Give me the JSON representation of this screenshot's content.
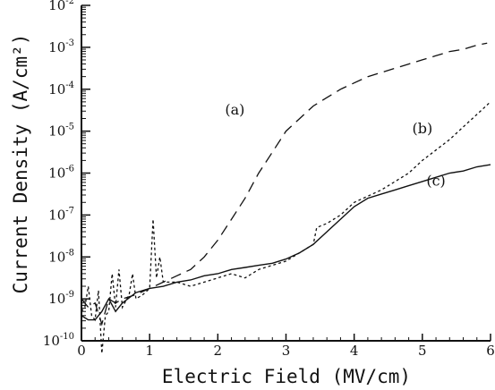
{
  "chart_data": {
    "type": "line",
    "title": "",
    "xlabel": "Electric Field (MV/cm)",
    "ylabel": "Current Density (A/cm²)",
    "xlim": [
      0,
      6
    ],
    "ylim_exp": [
      -10,
      -2
    ],
    "y_scale": "log",
    "x_ticks": [
      "0",
      "1",
      "2",
      "3",
      "4",
      "5",
      "6"
    ],
    "y_tick_base": "10",
    "y_tick_exponents": [
      "-10",
      "-9",
      "-8",
      "-7",
      "-6",
      "-5",
      "-4",
      "-3",
      "-2"
    ],
    "grid": false,
    "series": [
      {
        "name": "(a)",
        "style": "dashed",
        "x": [
          0,
          0.1,
          0.2,
          0.3,
          0.4,
          0.5,
          0.6,
          0.8,
          1.0,
          1.2,
          1.4,
          1.6,
          1.8,
          2.0,
          2.2,
          2.4,
          2.6,
          2.8,
          3.0,
          3.2,
          3.4,
          3.6,
          3.8,
          4.0,
          4.2,
          4.4,
          4.6,
          4.8,
          5.0,
          5.2,
          5.4,
          5.6,
          5.8,
          5.95
        ],
        "y_exp": [
          -9.0,
          -9.2,
          -9.1,
          -9.6,
          -9.0,
          -9.1,
          -9.0,
          -8.9,
          -8.75,
          -8.6,
          -8.45,
          -8.3,
          -8.0,
          -7.6,
          -7.1,
          -6.6,
          -6.0,
          -5.5,
          -5.0,
          -4.7,
          -4.4,
          -4.2,
          -4.0,
          -3.85,
          -3.7,
          -3.6,
          -3.5,
          -3.4,
          -3.3,
          -3.2,
          -3.1,
          -3.05,
          -2.95,
          -2.9
        ]
      },
      {
        "name": "(b)",
        "style": "dotted",
        "x": [
          0,
          0.05,
          0.1,
          0.15,
          0.2,
          0.25,
          0.3,
          0.35,
          0.4,
          0.45,
          0.5,
          0.55,
          0.6,
          0.7,
          0.75,
          0.8,
          0.9,
          1.0,
          1.05,
          1.1,
          1.15,
          1.2,
          1.4,
          1.6,
          1.8,
          2.0,
          2.2,
          2.4,
          2.6,
          2.8,
          3.0,
          3.2,
          3.4,
          3.45,
          3.6,
          3.8,
          4.0,
          4.2,
          4.4,
          4.6,
          4.8,
          5.0,
          5.2,
          5.4,
          5.6,
          5.8,
          6.0
        ],
        "y_exp": [
          -9.3,
          -9.2,
          -8.7,
          -9.4,
          -9.5,
          -8.8,
          -10.3,
          -9.4,
          -9.3,
          -8.4,
          -9.2,
          -8.3,
          -9.2,
          -8.9,
          -8.4,
          -9.0,
          -8.9,
          -8.75,
          -7.1,
          -8.5,
          -8.0,
          -8.6,
          -8.6,
          -8.7,
          -8.6,
          -8.5,
          -8.4,
          -8.5,
          -8.3,
          -8.2,
          -8.1,
          -7.9,
          -7.7,
          -7.3,
          -7.2,
          -7.0,
          -6.7,
          -6.55,
          -6.4,
          -6.2,
          -6.0,
          -5.7,
          -5.45,
          -5.2,
          -4.9,
          -4.6,
          -4.3
        ]
      },
      {
        "name": "(c)",
        "style": "solid",
        "x": [
          0,
          0.1,
          0.2,
          0.3,
          0.4,
          0.5,
          0.6,
          0.8,
          1.0,
          1.2,
          1.4,
          1.6,
          1.8,
          2.0,
          2.2,
          2.4,
          2.6,
          2.8,
          3.0,
          3.2,
          3.4,
          3.6,
          3.8,
          4.0,
          4.2,
          4.4,
          4.6,
          4.8,
          5.0,
          5.2,
          5.4,
          5.6,
          5.8,
          6.0
        ],
        "y_exp": [
          -9.4,
          -9.5,
          -9.5,
          -9.3,
          -9.0,
          -9.3,
          -9.1,
          -8.85,
          -8.75,
          -8.7,
          -8.6,
          -8.55,
          -8.45,
          -8.4,
          -8.3,
          -8.25,
          -8.2,
          -8.15,
          -8.05,
          -7.9,
          -7.7,
          -7.4,
          -7.1,
          -6.8,
          -6.6,
          -6.5,
          -6.4,
          -6.3,
          -6.2,
          -6.1,
          -6.0,
          -5.95,
          -5.85,
          -5.8
        ]
      }
    ],
    "annotations": [
      {
        "text": "(a)",
        "x": 2.25,
        "y_exp": -4.6
      },
      {
        "text": "(b)",
        "x": 5.0,
        "y_exp": -5.05
      },
      {
        "text": "(c)",
        "x": 5.2,
        "y_exp": -6.3
      }
    ]
  }
}
